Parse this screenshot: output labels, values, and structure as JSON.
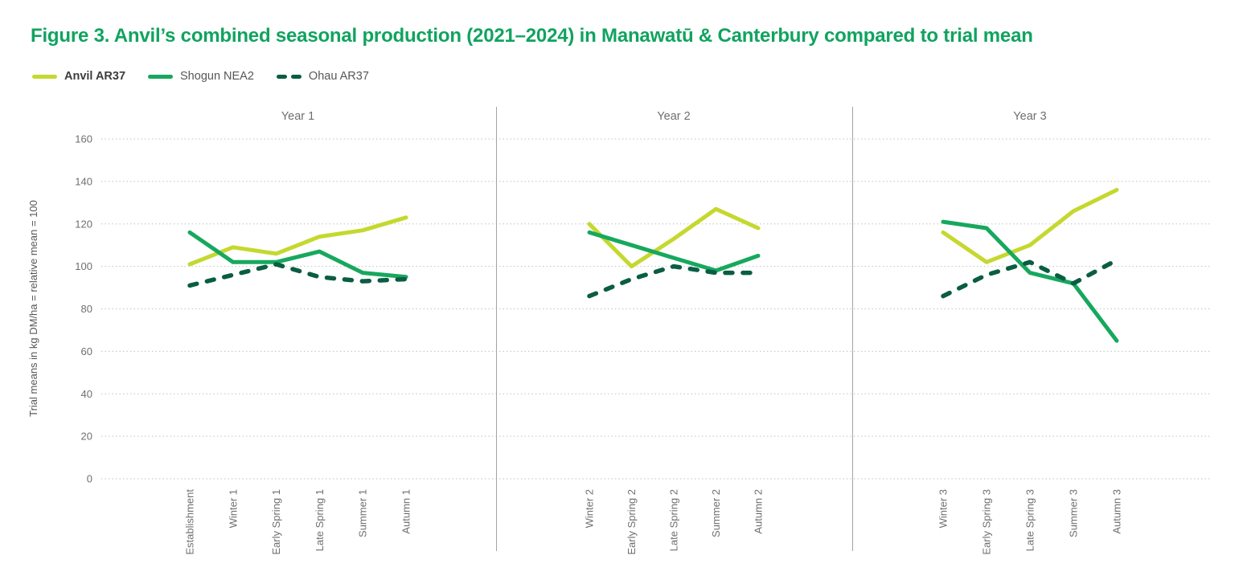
{
  "figure": {
    "title": "Figure 3. Anvil’s combined seasonal production (2021–2024) in Manawatū & Canterbury compared to trial mean",
    "title_color": "#10a35f"
  },
  "legend": {
    "items": [
      {
        "label": "Anvil AR37",
        "key": "anvil",
        "swatch": "solid",
        "bold": true
      },
      {
        "label": "Shogun NEA2",
        "key": "shogun",
        "swatch": "solid",
        "bold": false
      },
      {
        "label": "Ohau AR37",
        "key": "ohau",
        "swatch": "dashed",
        "bold": false
      }
    ]
  },
  "chart_data": {
    "type": "line",
    "title": "Figure 3. Anvil’s combined seasonal production (2021–2024) in Manawatū & Canterbury compared to trial mean",
    "ylabel": "Trial means in kg DM/ha = relative mean = 100",
    "xlabel": "",
    "ylim": [
      0,
      160
    ],
    "yticks": [
      0,
      20,
      40,
      60,
      80,
      100,
      120,
      140,
      160
    ],
    "grid": "horizontal-dotted",
    "legend_position": "top-left",
    "colors": {
      "anvil": "#c5d82f",
      "shogun": "#17a85e",
      "ohau": "#0a5d43"
    },
    "line_styles": {
      "anvil": "solid",
      "shogun": "solid",
      "ohau": "dashed"
    },
    "text_colors": {
      "ticks": "#6f6f6f",
      "panel_title": "#6f6f6f",
      "axis_title": "#58585a"
    },
    "panels": [
      {
        "title": "Year 1",
        "categories": [
          "Establishment",
          "Winter 1",
          "Early Spring 1",
          "Late Spring 1",
          "Summer 1",
          "Autumn 1"
        ],
        "series": [
          {
            "name": "Anvil AR37",
            "key": "anvil",
            "values": [
              101,
              109,
              106,
              114,
              117,
              123
            ]
          },
          {
            "name": "Shogun NEA2",
            "key": "shogun",
            "values": [
              116,
              102,
              102,
              107,
              97,
              95
            ]
          },
          {
            "name": "Ohau AR37",
            "key": "ohau",
            "values": [
              91,
              96,
              101,
              95,
              93,
              94
            ]
          }
        ]
      },
      {
        "title": "Year 2",
        "categories": [
          "Winter 2",
          "Early Spring 2",
          "Late Spring 2",
          "Summer 2",
          "Autumn 2"
        ],
        "series": [
          {
            "name": "Anvil AR37",
            "key": "anvil",
            "values": [
              120,
              100,
              113,
              127,
              118
            ]
          },
          {
            "name": "Shogun NEA2",
            "key": "shogun",
            "values": [
              116,
              110,
              104,
              98,
              105
            ]
          },
          {
            "name": "Ohau AR37",
            "key": "ohau",
            "values": [
              86,
              94,
              100,
              97,
              97
            ]
          }
        ]
      },
      {
        "title": "Year 3",
        "categories": [
          "Winter 3",
          "Early Spring 3",
          "Late Spring 3",
          "Summer 3",
          "Autumn 3"
        ],
        "series": [
          {
            "name": "Anvil AR37",
            "key": "anvil",
            "values": [
              116,
              102,
              110,
              126,
              136
            ]
          },
          {
            "name": "Shogun NEA2",
            "key": "shogun",
            "values": [
              121,
              118,
              97,
              92,
              65
            ]
          },
          {
            "name": "Ohau AR37",
            "key": "ohau",
            "values": [
              86,
              96,
              102,
              92,
              103
            ]
          }
        ]
      }
    ]
  }
}
